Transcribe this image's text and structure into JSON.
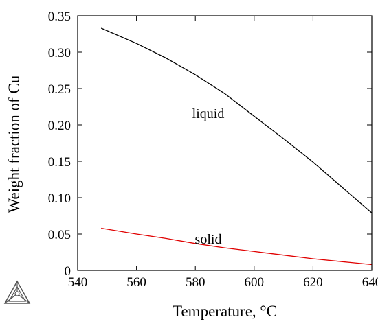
{
  "chart_data": {
    "type": "line",
    "xlabel": "Temperature, °C",
    "ylabel": "Weight fraction of Cu",
    "xlim": [
      540,
      640
    ],
    "ylim": [
      0,
      0.35
    ],
    "x_ticks": [
      "540",
      "560",
      "580",
      "600",
      "620",
      "640"
    ],
    "y_ticks": [
      "0",
      "0.05",
      "0.10",
      "0.15",
      "0.20",
      "0.25",
      "0.30",
      "0.35"
    ],
    "grid": false,
    "legend": "none",
    "annotations": [
      {
        "text": "liquid",
        "x": 596,
        "y": 0.215
      },
      {
        "text": "solid",
        "x": 592,
        "y": 0.044
      }
    ],
    "series": [
      {
        "color": "#000000",
        "x": [
          548,
          560,
          570,
          580,
          590,
          600,
          610,
          620,
          630,
          640
        ],
        "y": [
          0.333,
          0.312,
          0.292,
          0.269,
          0.243,
          0.212,
          0.181,
          0.149,
          0.114,
          0.079
        ]
      },
      {
        "color": "#e00000",
        "x": [
          548,
          560,
          570,
          580,
          590,
          600,
          610,
          620,
          630,
          640
        ],
        "y": [
          0.058,
          0.05,
          0.044,
          0.037,
          0.031,
          0.026,
          0.021,
          0.016,
          0.012,
          0.008
        ]
      }
    ]
  },
  "logo": {
    "icon": "thermo-calc-triangle-logo"
  }
}
